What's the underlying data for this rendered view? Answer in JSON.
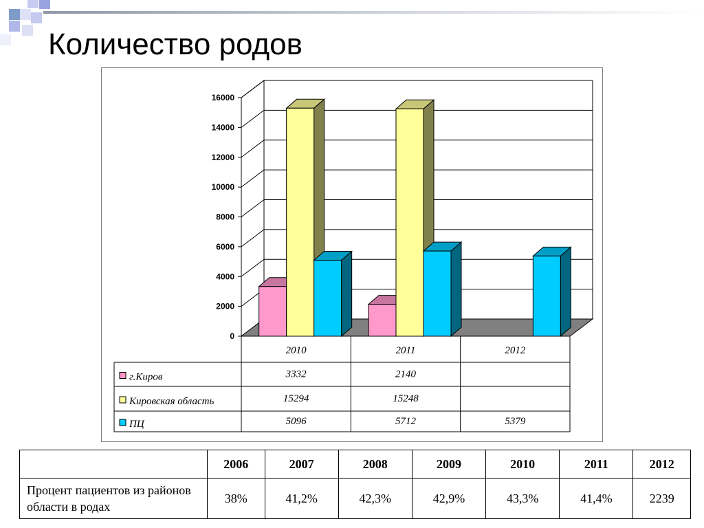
{
  "slide": {
    "title": "Количество родов"
  },
  "chart_data": {
    "type": "bar",
    "categories": [
      "2010",
      "2011",
      "2012"
    ],
    "series": [
      {
        "name": "г.Киров",
        "values": [
          3332,
          2140,
          null
        ],
        "color": "#ff99cc"
      },
      {
        "name": "Кировская область",
        "values": [
          15294,
          15248,
          null
        ],
        "color": "#ffff99"
      },
      {
        "name": "ПЦ",
        "values": [
          5096,
          5712,
          5379
        ],
        "color": "#00ccff"
      }
    ],
    "yticks": [
      "0",
      "2000",
      "4000",
      "6000",
      "8000",
      "10000",
      "12000",
      "14000",
      "16000"
    ],
    "ylim": [
      0,
      16000
    ],
    "grid": true,
    "legend": "data-table",
    "table_cells": [
      [
        "3332",
        "2140",
        ""
      ],
      [
        "15294",
        "15248",
        ""
      ],
      [
        "5096",
        "5712",
        "5379"
      ]
    ]
  },
  "table": {
    "years": [
      "2006",
      "2007",
      "2008",
      "2009",
      "2010",
      "2011",
      "2012"
    ],
    "row_label": "Процент пациентов из районов области в родах",
    "values": [
      "38%",
      "41,2%",
      "42,3%",
      "42,9%",
      "43,3%",
      "41,4%",
      "2239"
    ]
  }
}
